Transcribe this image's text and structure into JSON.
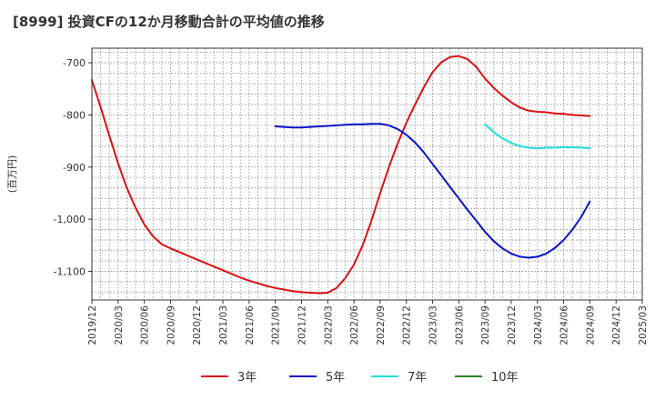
{
  "chart_data": {
    "type": "line",
    "title": "[8999]  投資CFの12か月移動合計の平均値の推移",
    "ylabel": "(百万円)",
    "xlabel": "",
    "ylim": [
      -1155,
      -672
    ],
    "yticks": [
      -700,
      -800,
      -900,
      -1000,
      -1100
    ],
    "ytick_labels": [
      "-700",
      "-800",
      "-900",
      "-1,000",
      "-1,100"
    ],
    "x_range": [
      "2019-12",
      "2025-03"
    ],
    "xtick_labels": [
      "2019/12",
      "2020/03",
      "2020/06",
      "2020/09",
      "2020/12",
      "2021/03",
      "2021/06",
      "2021/09",
      "2021/12",
      "2022/03",
      "2022/06",
      "2022/09",
      "2022/12",
      "2023/03",
      "2023/06",
      "2023/09",
      "2023/12",
      "2024/03",
      "2024/06",
      "2024/09",
      "2024/12",
      "2025/03"
    ],
    "grid": true,
    "legend_position": "bottom",
    "series": [
      {
        "name": "3年",
        "color": "#dd1111",
        "points": [
          [
            "2019-12",
            -733
          ],
          [
            "2020-01",
            -785
          ],
          [
            "2020-02",
            -840
          ],
          [
            "2020-03",
            -893
          ],
          [
            "2020-04",
            -940
          ],
          [
            "2020-05",
            -978
          ],
          [
            "2020-06",
            -1010
          ],
          [
            "2020-07",
            -1033
          ],
          [
            "2020-08",
            -1048
          ],
          [
            "2020-09",
            -1056
          ],
          [
            "2020-10",
            -1063
          ],
          [
            "2020-11",
            -1070
          ],
          [
            "2020-12",
            -1077
          ],
          [
            "2021-01",
            -1084
          ],
          [
            "2021-02",
            -1091
          ],
          [
            "2021-03",
            -1098
          ],
          [
            "2021-04",
            -1105
          ],
          [
            "2021-05",
            -1112
          ],
          [
            "2021-06",
            -1118
          ],
          [
            "2021-07",
            -1123
          ],
          [
            "2021-08",
            -1128
          ],
          [
            "2021-09",
            -1132
          ],
          [
            "2021-10",
            -1135
          ],
          [
            "2021-11",
            -1138
          ],
          [
            "2021-12",
            -1140
          ],
          [
            "2022-01",
            -1141
          ],
          [
            "2022-02",
            -1142
          ],
          [
            "2022-03",
            -1141
          ],
          [
            "2022-04",
            -1132
          ],
          [
            "2022-05",
            -1113
          ],
          [
            "2022-06",
            -1087
          ],
          [
            "2022-07",
            -1050
          ],
          [
            "2022-08",
            -1003
          ],
          [
            "2022-09",
            -950
          ],
          [
            "2022-10",
            -900
          ],
          [
            "2022-11",
            -855
          ],
          [
            "2022-12",
            -815
          ],
          [
            "2023-01",
            -780
          ],
          [
            "2023-02",
            -747
          ],
          [
            "2023-03",
            -718
          ],
          [
            "2023-04",
            -699
          ],
          [
            "2023-05",
            -689
          ],
          [
            "2023-06",
            -687
          ],
          [
            "2023-07",
            -693
          ],
          [
            "2023-08",
            -708
          ],
          [
            "2023-09",
            -730
          ],
          [
            "2023-10",
            -748
          ],
          [
            "2023-11",
            -763
          ],
          [
            "2023-12",
            -776
          ],
          [
            "2024-01",
            -786
          ],
          [
            "2024-02",
            -792
          ],
          [
            "2024-03",
            -794
          ],
          [
            "2024-04",
            -795
          ],
          [
            "2024-05",
            -797
          ],
          [
            "2024-06",
            -798
          ],
          [
            "2024-07",
            -800
          ],
          [
            "2024-08",
            -801
          ],
          [
            "2024-09",
            -802
          ]
        ]
      },
      {
        "name": "5年",
        "color": "#0a14c8",
        "points": [
          [
            "2021-09",
            -822
          ],
          [
            "2021-10",
            -823
          ],
          [
            "2021-11",
            -824
          ],
          [
            "2021-12",
            -824
          ],
          [
            "2022-01",
            -823
          ],
          [
            "2022-02",
            -822
          ],
          [
            "2022-03",
            -821
          ],
          [
            "2022-04",
            -820
          ],
          [
            "2022-05",
            -819
          ],
          [
            "2022-06",
            -818
          ],
          [
            "2022-07",
            -818
          ],
          [
            "2022-08",
            -817
          ],
          [
            "2022-09",
            -817
          ],
          [
            "2022-10",
            -820
          ],
          [
            "2022-11",
            -827
          ],
          [
            "2022-12",
            -838
          ],
          [
            "2023-01",
            -853
          ],
          [
            "2023-02",
            -872
          ],
          [
            "2023-03",
            -894
          ],
          [
            "2023-04",
            -916
          ],
          [
            "2023-05",
            -938
          ],
          [
            "2023-06",
            -960
          ],
          [
            "2023-07",
            -982
          ],
          [
            "2023-08",
            -1003
          ],
          [
            "2023-09",
            -1024
          ],
          [
            "2023-10",
            -1042
          ],
          [
            "2023-11",
            -1056
          ],
          [
            "2023-12",
            -1066
          ],
          [
            "2024-01",
            -1072
          ],
          [
            "2024-02",
            -1074
          ],
          [
            "2024-03",
            -1072
          ],
          [
            "2024-04",
            -1066
          ],
          [
            "2024-05",
            -1055
          ],
          [
            "2024-06",
            -1040
          ],
          [
            "2024-07",
            -1020
          ],
          [
            "2024-08",
            -996
          ],
          [
            "2024-09",
            -966
          ]
        ]
      },
      {
        "name": "7年",
        "color": "#22dddd",
        "points": [
          [
            "2023-09",
            -818
          ],
          [
            "2023-10",
            -833
          ],
          [
            "2023-11",
            -845
          ],
          [
            "2023-12",
            -854
          ],
          [
            "2024-01",
            -860
          ],
          [
            "2024-02",
            -863
          ],
          [
            "2024-03",
            -864
          ],
          [
            "2024-04",
            -863
          ],
          [
            "2024-05",
            -863
          ],
          [
            "2024-06",
            -862
          ],
          [
            "2024-07",
            -862
          ],
          [
            "2024-08",
            -863
          ],
          [
            "2024-09",
            -864
          ]
        ]
      },
      {
        "name": "10年",
        "color": "#228822",
        "points": []
      }
    ]
  }
}
